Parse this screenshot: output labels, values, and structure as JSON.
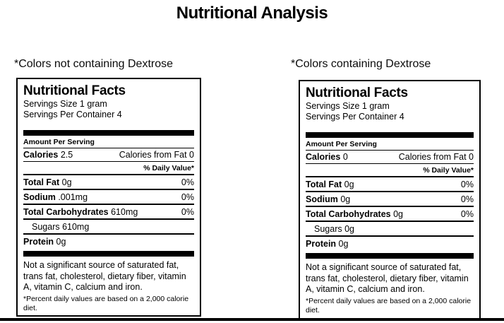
{
  "page": {
    "title": "Nutritional Analysis"
  },
  "theme": {
    "text_color": "#000000",
    "background_color": "#ffffff",
    "rule_color": "#000000"
  },
  "labels": [
    {
      "caption": "*Colors not containing Dextrose",
      "facts": {
        "heading": "Nutritional Facts",
        "serving_size": "Servings Size 1 gram",
        "servings_per_container": "Servings Per Container 4",
        "amount_per_serving": "Amount Per Serving",
        "calories_label": "Calories",
        "calories_value": "2.5",
        "calories_from_fat": "Calories from Fat 0",
        "daily_value_header": "% Daily Value*",
        "rows": [
          {
            "label": "Total Fat",
            "value": "0g",
            "dv": "0%"
          },
          {
            "label": "Sodium",
            "value": ".001mg",
            "dv": "0%"
          },
          {
            "label": "Total Carbohydrates",
            "value": "610mg",
            "dv": "0%"
          }
        ],
        "sugars": "Sugars 610mg",
        "protein_label": "Protein",
        "protein_value": "0g",
        "footnote": "Not a significant source of saturated fat, trans fat, cholesterol, dietary fiber, vitamin A, vitamin C, calcium and iron.",
        "fine_print": "*Percent daily values are based on a 2,000 calorie diet."
      }
    },
    {
      "caption": "*Colors containing Dextrose",
      "facts": {
        "heading": "Nutritional Facts",
        "serving_size": "Servings Size 1 gram",
        "servings_per_container": "Servings Per Container 4",
        "amount_per_serving": "Amount Per Serving",
        "calories_label": "Calories",
        "calories_value": "0",
        "calories_from_fat": "Calories from Fat 0",
        "daily_value_header": "% Daily Value*",
        "rows": [
          {
            "label": "Total Fat",
            "value": "0g",
            "dv": "0%"
          },
          {
            "label": "Sodium",
            "value": "0g",
            "dv": "0%"
          },
          {
            "label": "Total Carbohydrates",
            "value": "0g",
            "dv": "0%"
          }
        ],
        "sugars": "Sugars 0g",
        "protein_label": "Protein",
        "protein_value": "0g",
        "footnote": "Not a significant source of saturated fat, trans fat, cholesterol, dietary fiber, vitamin A, vitamin C, calcium and iron.",
        "fine_print": "*Percent daily values are based on a 2,000 calorie diet."
      }
    }
  ]
}
